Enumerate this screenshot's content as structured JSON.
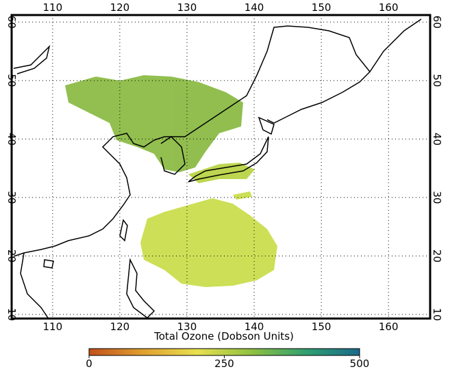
{
  "map": {
    "lonlim": [
      103.9,
      166.2
    ],
    "latlim": [
      9.3,
      61.2
    ],
    "lon_ticks": [
      110,
      120,
      130,
      140,
      150,
      160
    ],
    "lat_ticks": [
      10,
      20,
      30,
      40,
      50,
      60
    ]
  },
  "colorbar": {
    "title": "Total Ozone (Dobson Units)",
    "range": [
      0,
      500
    ],
    "ticks": [
      0,
      250,
      500
    ],
    "colors": [
      "#c0501a",
      "#e0a030",
      "#e8e050",
      "#90c040",
      "#30a070",
      "#1a6a8a"
    ]
  }
}
